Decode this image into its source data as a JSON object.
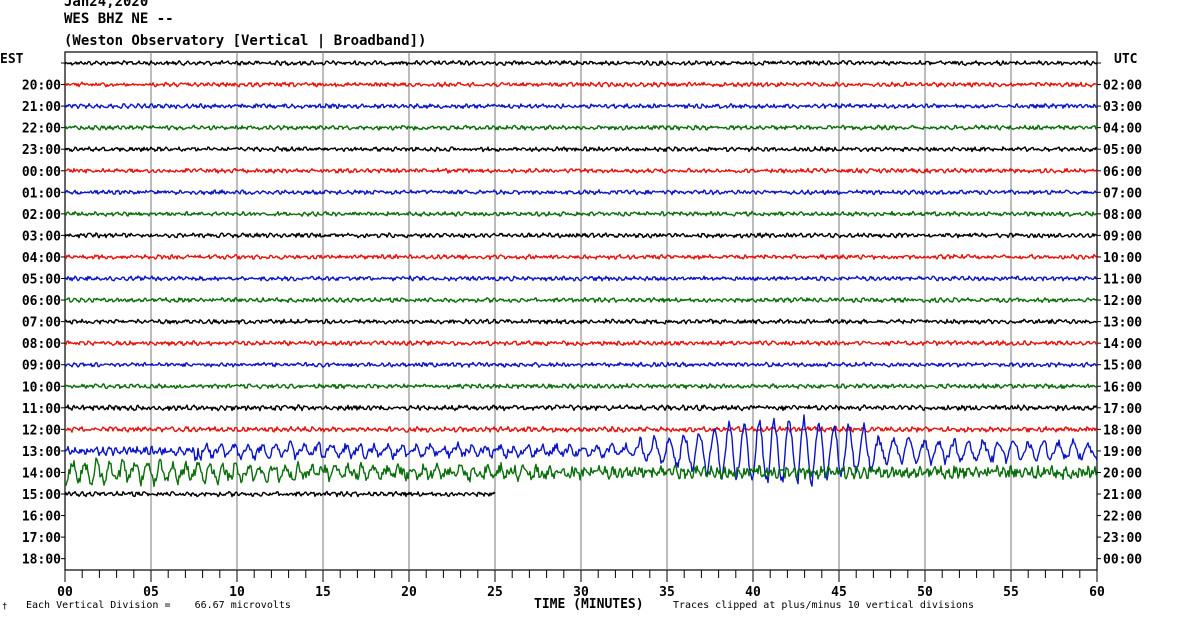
{
  "header": {
    "date": "Jan24,2020",
    "station": "WES BHZ NE --",
    "observatory": "(Weston Observatory [Vertical | Broadband])"
  },
  "axes": {
    "left_timezone": "EST",
    "right_timezone": "UTC",
    "xlabel": "TIME (MINUTES)"
  },
  "footer": {
    "division_note": "Each Vertical Division =    66.67 microvolts",
    "clipped_note": "Traces clipped at plus/minus 10 vertical divisions",
    "mark": "†"
  },
  "colors": {
    "trace_cycle": [
      "#000000",
      "#e8120c",
      "#0a14c8",
      "#0a6e0a"
    ],
    "grid": "#7a7a7a"
  },
  "chart_data": {
    "type": "line",
    "title": "",
    "xlabel": "TIME (MINUTES)",
    "xlim": [
      0,
      60
    ],
    "x_ticks": [
      "00",
      "05",
      "10",
      "15",
      "20",
      "25",
      "30",
      "35",
      "40",
      "45",
      "50",
      "55",
      "60"
    ],
    "rows": [
      {
        "est": "",
        "utc": "",
        "color": "#000000",
        "amp": 1.0,
        "end_min": 60
      },
      {
        "est": "20:00",
        "utc": "02:00",
        "color": "#e8120c",
        "amp": 1.0,
        "end_min": 60
      },
      {
        "est": "21:00",
        "utc": "03:00",
        "color": "#0a14c8",
        "amp": 1.0,
        "end_min": 60
      },
      {
        "est": "22:00",
        "utc": "04:00",
        "color": "#0a6e0a",
        "amp": 1.0,
        "end_min": 60
      },
      {
        "est": "23:00",
        "utc": "05:00",
        "color": "#000000",
        "amp": 1.0,
        "end_min": 60
      },
      {
        "est": "00:00",
        "utc": "06:00",
        "color": "#e8120c",
        "amp": 1.0,
        "end_min": 60
      },
      {
        "est": "01:00",
        "utc": "07:00",
        "color": "#0a14c8",
        "amp": 1.0,
        "end_min": 60
      },
      {
        "est": "02:00",
        "utc": "08:00",
        "color": "#0a6e0a",
        "amp": 1.0,
        "end_min": 60
      },
      {
        "est": "03:00",
        "utc": "09:00",
        "color": "#000000",
        "amp": 1.0,
        "end_min": 60
      },
      {
        "est": "04:00",
        "utc": "10:00",
        "color": "#e8120c",
        "amp": 1.0,
        "end_min": 60
      },
      {
        "est": "05:00",
        "utc": "11:00",
        "color": "#0a14c8",
        "amp": 1.0,
        "end_min": 60
      },
      {
        "est": "06:00",
        "utc": "12:00",
        "color": "#0a6e0a",
        "amp": 1.0,
        "end_min": 60
      },
      {
        "est": "07:00",
        "utc": "13:00",
        "color": "#000000",
        "amp": 1.0,
        "end_min": 60
      },
      {
        "est": "08:00",
        "utc": "14:00",
        "color": "#e8120c",
        "amp": 1.0,
        "end_min": 60
      },
      {
        "est": "09:00",
        "utc": "15:00",
        "color": "#0a14c8",
        "amp": 1.0,
        "end_min": 60
      },
      {
        "est": "10:00",
        "utc": "16:00",
        "color": "#0a6e0a",
        "amp": 1.0,
        "end_min": 60
      },
      {
        "est": "11:00",
        "utc": "17:00",
        "color": "#000000",
        "amp": 1.2,
        "end_min": 60
      },
      {
        "est": "12:00",
        "utc": "18:00",
        "color": "#e8120c",
        "amp": 1.2,
        "end_min": 60
      },
      {
        "est": "13:00",
        "utc": "19:00",
        "color": "#0a14c8",
        "amp": 2.0,
        "end_min": 60,
        "event": true
      },
      {
        "est": "14:00",
        "utc": "20:00",
        "color": "#0a6e0a",
        "amp": 3.0,
        "end_min": 60,
        "coda": true
      },
      {
        "est": "15:00",
        "utc": "21:00",
        "color": "#000000",
        "amp": 1.1,
        "end_min": 25
      },
      {
        "est": "16:00",
        "utc": "22:00",
        "color": "",
        "amp": 0,
        "end_min": 0
      },
      {
        "est": "17:00",
        "utc": "23:00",
        "color": "",
        "amp": 0,
        "end_min": 0
      },
      {
        "est": "18:00",
        "utc": "00:00",
        "color": "",
        "amp": 0,
        "end_min": 0
      }
    ],
    "event": {
      "row_est": "13:00",
      "p_arrival_min": 7.5,
      "surface_start_min": 33,
      "peak_min": 42,
      "end_min": 60
    }
  }
}
